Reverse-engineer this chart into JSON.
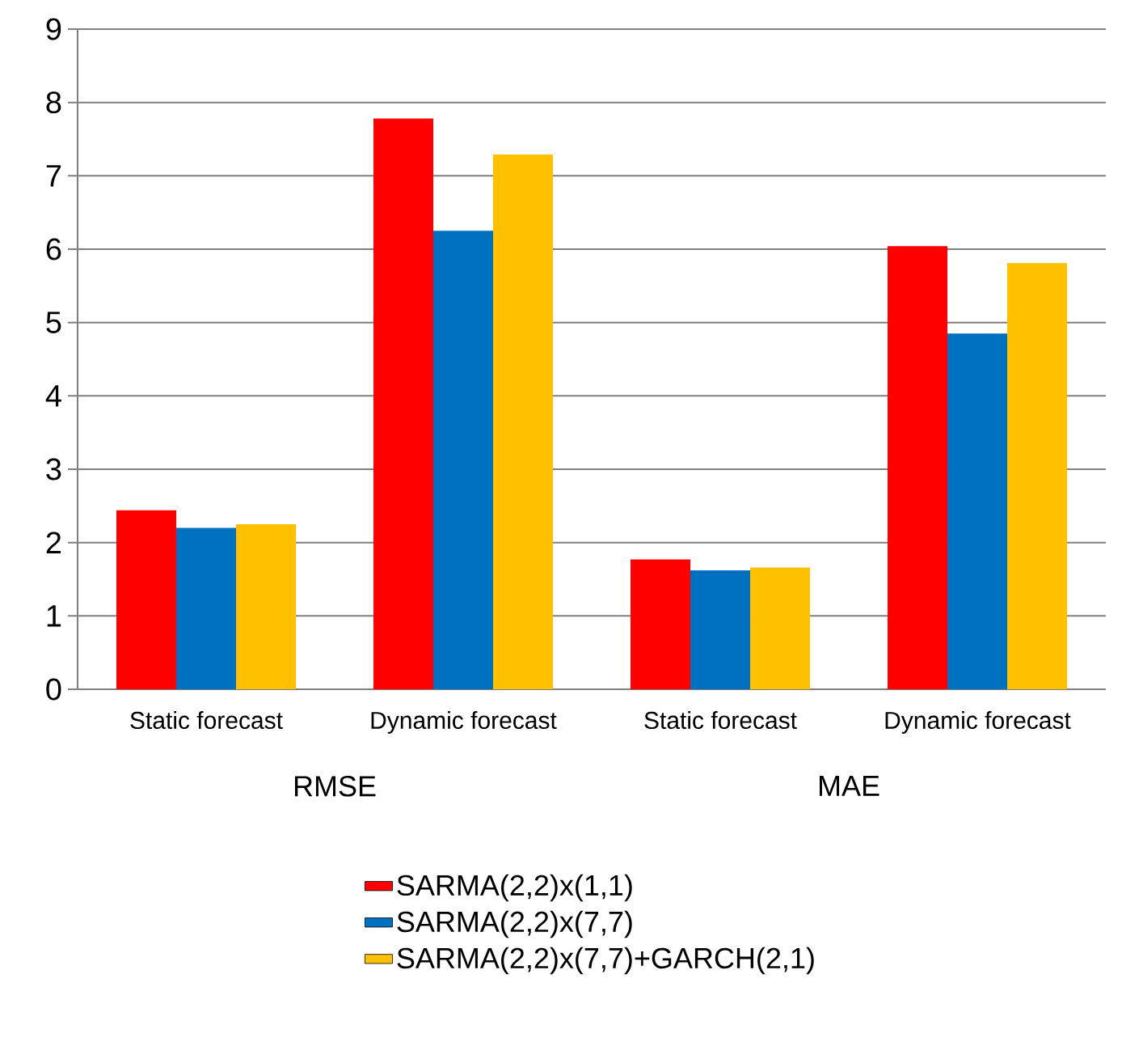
{
  "chart_data": {
    "type": "bar",
    "categories": [
      "Static forecast",
      "Dynamic forecast",
      "Static forecast",
      "Dynamic forecast"
    ],
    "series": [
      {
        "name": "SARMA(2,2)x(1,1)",
        "color": "#ff0000",
        "values": [
          2.44,
          7.78,
          1.77,
          6.04
        ]
      },
      {
        "name": "SARMA(2,2)x(7,7)",
        "color": "#0070c0",
        "values": [
          2.2,
          6.25,
          1.62,
          4.85
        ]
      },
      {
        "name": "SARMA(2,2)x(7,7)+GARCH(2,1)",
        "color": "#ffc000",
        "values": [
          2.25,
          7.29,
          1.66,
          5.81
        ]
      }
    ],
    "annotations": [
      "RMSE",
      "MAE"
    ],
    "ylim": [
      0,
      9
    ],
    "yticks": [
      0,
      1,
      2,
      3,
      4,
      5,
      6,
      7,
      8,
      9
    ],
    "grid": "y",
    "legend": "bottom"
  }
}
